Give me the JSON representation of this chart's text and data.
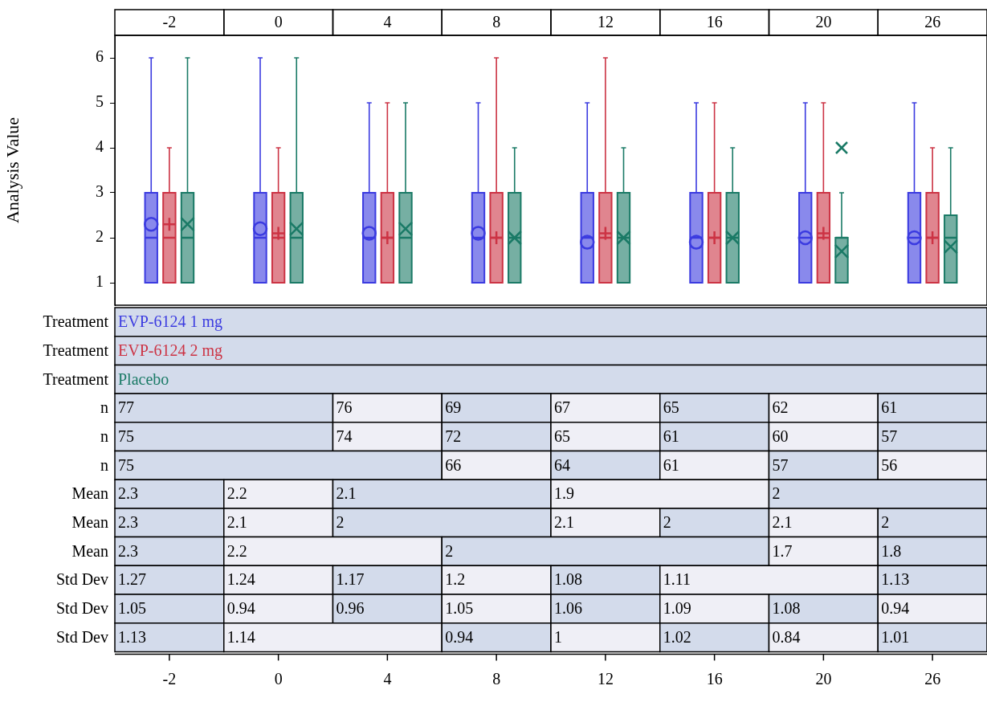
{
  "chart_data": {
    "type": "box",
    "ylabel": "Analysis Value",
    "categories": [
      "-2",
      "0",
      "4",
      "8",
      "12",
      "16",
      "20",
      "26"
    ],
    "ylim": [
      0.5,
      6.5
    ],
    "yticks": [
      1,
      2,
      3,
      4,
      5,
      6
    ],
    "grid": false,
    "legend": "bottom",
    "legend_title": "Treatment",
    "series": [
      {
        "name": "EVP-6124 1 mg",
        "color": "#3b3be0",
        "marker": "circle",
        "boxes": [
          {
            "low": 1,
            "q1": 1,
            "median": 2,
            "q3": 3,
            "high": 6,
            "mean": 2.3
          },
          {
            "low": 1,
            "q1": 1,
            "median": 2,
            "q3": 3,
            "high": 6,
            "mean": 2.2
          },
          {
            "low": 1,
            "q1": 1,
            "median": 2,
            "q3": 3,
            "high": 5,
            "mean": 2.1
          },
          {
            "low": 1,
            "q1": 1,
            "median": 2,
            "q3": 3,
            "high": 5,
            "mean": 2.1
          },
          {
            "low": 1,
            "q1": 1,
            "median": 2,
            "q3": 3,
            "high": 5,
            "mean": 1.9
          },
          {
            "low": 1,
            "q1": 1,
            "median": 2,
            "q3": 3,
            "high": 5,
            "mean": 1.9
          },
          {
            "low": 1,
            "q1": 1,
            "median": 2,
            "q3": 3,
            "high": 5,
            "mean": 2
          },
          {
            "low": 1,
            "q1": 1,
            "median": 2,
            "q3": 3,
            "high": 5,
            "mean": 2
          }
        ]
      },
      {
        "name": "EVP-6124 2 mg",
        "color": "#cc3344",
        "marker": "cross",
        "boxes": [
          {
            "low": 1,
            "q1": 1,
            "median": 2,
            "q3": 3,
            "high": 4,
            "mean": 2.3
          },
          {
            "low": 1,
            "q1": 1,
            "median": 2,
            "q3": 3,
            "high": 4,
            "mean": 2.1
          },
          {
            "low": 1,
            "q1": 1,
            "median": 2,
            "q3": 3,
            "high": 5,
            "mean": 2
          },
          {
            "low": 1,
            "q1": 1,
            "median": 2,
            "q3": 3,
            "high": 6,
            "mean": 2
          },
          {
            "low": 1,
            "q1": 1,
            "median": 2,
            "q3": 3,
            "high": 6,
            "mean": 2.1
          },
          {
            "low": 1,
            "q1": 1,
            "median": 2,
            "q3": 3,
            "high": 5,
            "mean": 2
          },
          {
            "low": 1,
            "q1": 1,
            "median": 2,
            "q3": 3,
            "high": 5,
            "mean": 2.1
          },
          {
            "low": 1,
            "q1": 1,
            "median": 2,
            "q3": 3,
            "high": 4,
            "mean": 2
          }
        ]
      },
      {
        "name": "Placebo",
        "color": "#1a7a66",
        "marker": "x",
        "boxes": [
          {
            "low": 1,
            "q1": 1,
            "median": 2,
            "q3": 3,
            "high": 6,
            "mean": 2.3
          },
          {
            "low": 1,
            "q1": 1,
            "median": 2,
            "q3": 3,
            "high": 6,
            "mean": 2.2
          },
          {
            "low": 1,
            "q1": 1,
            "median": 2,
            "q3": 3,
            "high": 5,
            "mean": 2.2
          },
          {
            "low": 1,
            "q1": 1,
            "median": 2,
            "q3": 3,
            "high": 4,
            "mean": 2
          },
          {
            "low": 1,
            "q1": 1,
            "median": 2,
            "q3": 3,
            "high": 4,
            "mean": 2
          },
          {
            "low": 1,
            "q1": 1,
            "median": 2,
            "q3": 3,
            "high": 4,
            "mean": 2
          },
          {
            "low": 1,
            "q1": 1,
            "median": 2,
            "q3": 2,
            "high": 3,
            "mean": 1.7,
            "outliers": [
              4
            ]
          },
          {
            "low": 1,
            "q1": 1,
            "median": 2,
            "q3": 2.5,
            "high": 4,
            "mean": 1.8
          }
        ]
      }
    ],
    "annotations": [
      "n",
      "77",
      "76",
      "69",
      "67",
      "65",
      "62",
      "61",
      "n",
      "75",
      "74",
      "72",
      "65",
      "61",
      "60",
      "57",
      "n",
      "75",
      "66",
      "64",
      "61",
      "57",
      "56",
      "Mean",
      "2.3",
      "2.2",
      "2.1",
      "1.9",
      "2",
      "Mean",
      "2.3",
      "2.1",
      "2",
      "2.1",
      "2",
      "2.1",
      "2",
      "Mean",
      "2.3",
      "2.2",
      "2",
      "1.7",
      "1.8",
      "Std Dev",
      "1.27",
      "1.24",
      "1.17",
      "1.2",
      "1.08",
      "1.11",
      "1.13",
      "Std Dev",
      "1.05",
      "0.94",
      "0.96",
      "1.05",
      "1.06",
      "1.09",
      "1.08",
      "0.94",
      "Std Dev",
      "1.13",
      "1.14",
      "0.94",
      "1",
      "1.02",
      "0.84",
      "1.01"
    ]
  }
}
